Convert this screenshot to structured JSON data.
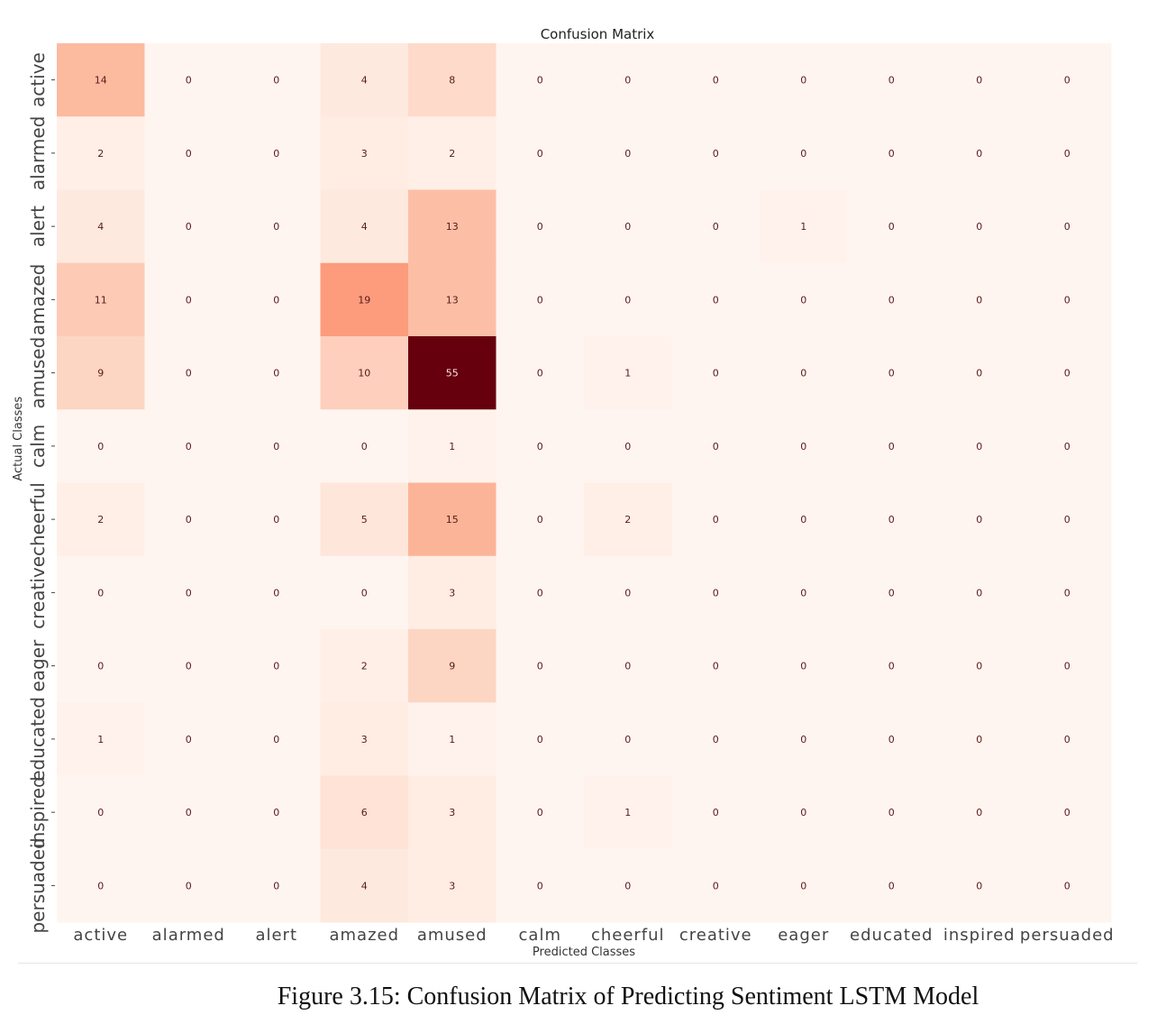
{
  "caption": "Figure 3.15: Confusion Matrix of Predicting Sentiment LSTM Model",
  "chart_data": {
    "type": "heatmap",
    "title": "Confusion Matrix",
    "xlabel": "Predicted Classes",
    "ylabel": "Actual Classes",
    "colormap": "Reds",
    "colorbar": false,
    "vmin": 0,
    "vmax": 55,
    "x_categories": [
      "active",
      "alarmed",
      "alert",
      "amazed",
      "amused",
      "calm",
      "cheerful",
      "creative",
      "eager",
      "educated",
      "inspired",
      "persuaded"
    ],
    "y_categories": [
      "active",
      "alarmed",
      "alert",
      "amazed",
      "amused",
      "calm",
      "cheerful",
      "creative",
      "eager",
      "educated",
      "inspired",
      "persuaded"
    ],
    "values": [
      [
        14,
        0,
        0,
        4,
        8,
        0,
        0,
        0,
        0,
        0,
        0,
        0
      ],
      [
        2,
        0,
        0,
        3,
        2,
        0,
        0,
        0,
        0,
        0,
        0,
        0
      ],
      [
        4,
        0,
        0,
        4,
        13,
        0,
        0,
        0,
        1,
        0,
        0,
        0
      ],
      [
        11,
        0,
        0,
        19,
        13,
        0,
        0,
        0,
        0,
        0,
        0,
        0
      ],
      [
        9,
        0,
        0,
        10,
        55,
        0,
        1,
        0,
        0,
        0,
        0,
        0
      ],
      [
        0,
        0,
        0,
        0,
        1,
        0,
        0,
        0,
        0,
        0,
        0,
        0
      ],
      [
        2,
        0,
        0,
        5,
        15,
        0,
        2,
        0,
        0,
        0,
        0,
        0
      ],
      [
        0,
        0,
        0,
        0,
        3,
        0,
        0,
        0,
        0,
        0,
        0,
        0
      ],
      [
        0,
        0,
        0,
        2,
        9,
        0,
        0,
        0,
        0,
        0,
        0,
        0
      ],
      [
        1,
        0,
        0,
        3,
        1,
        0,
        0,
        0,
        0,
        0,
        0,
        0
      ],
      [
        0,
        0,
        0,
        6,
        3,
        0,
        1,
        0,
        0,
        0,
        0,
        0
      ],
      [
        0,
        0,
        0,
        4,
        3,
        0,
        0,
        0,
        0,
        0,
        0,
        0
      ]
    ]
  }
}
